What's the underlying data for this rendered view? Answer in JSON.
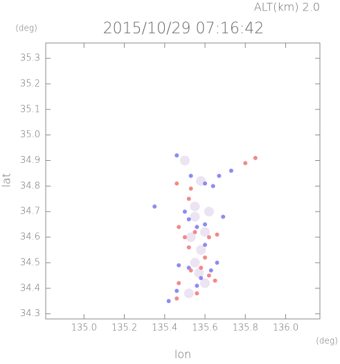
{
  "chart_data": {
    "type": "scatter",
    "title": "2015/10/29 07:16:42",
    "subtitle": "ALT(km) 2.0",
    "y_unit": "(deg)",
    "x_unit": "(deg)",
    "xlabel": "lon",
    "ylabel": "lat",
    "xlim": [
      134.81,
      136.17
    ],
    "ylim": [
      34.28,
      35.36
    ],
    "xticks": [
      {
        "value": 135,
        "label": "135.0"
      },
      135.2,
      135.4,
      135.6,
      135.8,
      {
        "value": 136,
        "label": "136.0"
      }
    ],
    "yticks": [
      34.3,
      34.4,
      34.5,
      34.6,
      34.7,
      34.8,
      34.9,
      {
        "value": 35,
        "label": "35.0"
      },
      35.1,
      35.2,
      35.3
    ],
    "series": [
      {
        "color": "#ece4f2",
        "size": 7,
        "x": [
          135.55,
          135.6,
          135.58,
          135.55,
          135.6,
          135.58,
          135.5,
          135.55,
          135.53,
          135.62,
          135.57,
          135.52
        ],
        "y": [
          34.68,
          34.62,
          34.55,
          34.5,
          34.42,
          34.82,
          34.9,
          34.72,
          34.6,
          34.7,
          34.46,
          34.38
        ]
      },
      {
        "color": "#8c8cf2",
        "size": 3,
        "x": [
          135.46,
          135.6,
          135.64,
          135.53,
          135.67,
          135.73,
          135.56,
          135.6,
          135.52,
          135.47,
          135.52,
          135.58,
          135.46,
          135.42,
          135.63,
          135.56,
          135.6,
          135.5,
          135.35,
          135.66,
          135.69
        ],
        "y": [
          34.92,
          34.81,
          34.8,
          34.84,
          34.84,
          34.86,
          34.64,
          34.65,
          34.67,
          34.49,
          34.48,
          34.44,
          34.39,
          34.35,
          34.47,
          34.41,
          34.57,
          34.7,
          34.72,
          34.5,
          34.68
        ]
      },
      {
        "color": "#f08a8a",
        "size": 3,
        "x": [
          135.46,
          135.53,
          135.8,
          135.85,
          135.47,
          135.55,
          135.62,
          135.52,
          135.6,
          135.53,
          135.62,
          135.47,
          135.56,
          135.46,
          135.66,
          135.52,
          135.58,
          135.5,
          135.65
        ],
        "y": [
          34.81,
          34.79,
          34.89,
          34.91,
          34.64,
          34.62,
          34.6,
          34.56,
          34.52,
          34.47,
          34.45,
          34.42,
          34.38,
          34.36,
          34.61,
          34.75,
          34.48,
          34.6,
          34.43
        ]
      }
    ]
  }
}
